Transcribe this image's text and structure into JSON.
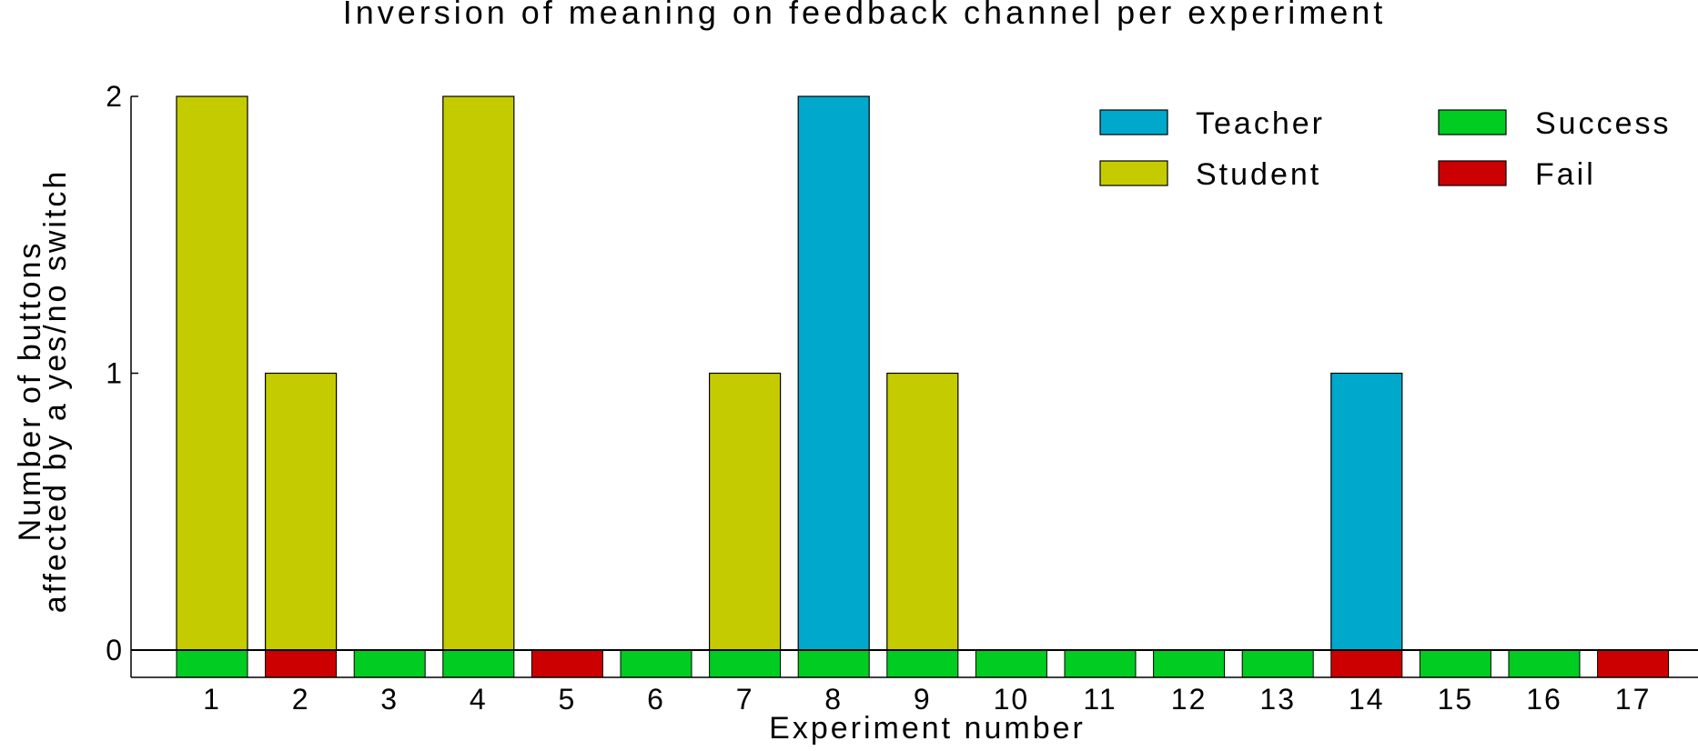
{
  "chart_data": {
    "type": "bar",
    "title": "Inversion of meaning on feedback channel per experiment",
    "xlabel": "Experiment number",
    "ylabel_line1": "Number of buttons",
    "ylabel_line2": "affected by a yes/no switch",
    "categories": [
      "1",
      "2",
      "3",
      "4",
      "5",
      "6",
      "7",
      "8",
      "9",
      "10",
      "11",
      "12",
      "13",
      "14",
      "15",
      "16",
      "17"
    ],
    "values": [
      2,
      1,
      0,
      2,
      0,
      0,
      1,
      2,
      1,
      0,
      0,
      0,
      0,
      1,
      0,
      0,
      0
    ],
    "role": [
      "Student",
      "Student",
      "",
      "Student",
      "",
      "",
      "Student",
      "Teacher",
      "Student",
      "",
      "",
      "",
      "",
      "Teacher",
      "",
      "",
      ""
    ],
    "outcome": [
      "Success",
      "Fail",
      "Success",
      "Success",
      "Fail",
      "Success",
      "Success",
      "Success",
      "Success",
      "Success",
      "Success",
      "Success",
      "Success",
      "Fail",
      "Success",
      "Success",
      "Fail"
    ],
    "yticks": [
      "0",
      "1",
      "2"
    ],
    "ylim": [
      0,
      2
    ],
    "grid": false,
    "legend_position": "top-right",
    "legend": [
      {
        "label": "Teacher",
        "color": "#00a8cc"
      },
      {
        "label": "Student",
        "color": "#c4cc00"
      },
      {
        "label": "Success",
        "color": "#00cc22"
      },
      {
        "label": "Fail",
        "color": "#cc0000"
      }
    ],
    "colors": {
      "Teacher": "#00a8cc",
      "Student": "#c4cc00",
      "Success": "#00cc22",
      "Fail": "#cc0000"
    }
  }
}
